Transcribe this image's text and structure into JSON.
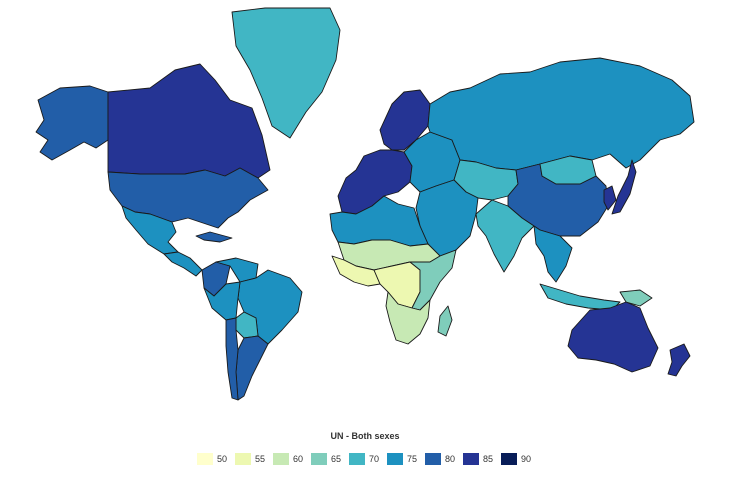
{
  "legend": {
    "title": "UN - Both sexes",
    "items": [
      {
        "label": "50",
        "color": "#ffffcc"
      },
      {
        "label": "55",
        "color": "#edf8b1"
      },
      {
        "label": "60",
        "color": "#c7e9b4"
      },
      {
        "label": "65",
        "color": "#7fcdbb"
      },
      {
        "label": "70",
        "color": "#41b6c4"
      },
      {
        "label": "75",
        "color": "#1d91c0"
      },
      {
        "label": "80",
        "color": "#225ea8"
      },
      {
        "label": "85",
        "color": "#253494"
      },
      {
        "label": "90",
        "color": "#081d58"
      }
    ]
  },
  "map": {
    "colors": {
      "ocean": "#ffffff",
      "border": "#1a1a1a"
    },
    "regions": [
      {
        "name": "Alaska",
        "value_band": "80"
      },
      {
        "name": "Canada",
        "value_band": "85"
      },
      {
        "name": "Greenland",
        "value_band": "70"
      },
      {
        "name": "United States",
        "value_band": "80"
      },
      {
        "name": "Mexico",
        "value_band": "75"
      },
      {
        "name": "Central America",
        "value_band": "75"
      },
      {
        "name": "Cuba",
        "value_band": "80"
      },
      {
        "name": "Colombia",
        "value_band": "80"
      },
      {
        "name": "Venezuela",
        "value_band": "75"
      },
      {
        "name": "Brazil",
        "value_band": "75"
      },
      {
        "name": "Peru",
        "value_band": "75"
      },
      {
        "name": "Bolivia",
        "value_band": "70"
      },
      {
        "name": "Argentina",
        "value_band": "80"
      },
      {
        "name": "Chile",
        "value_band": "80"
      },
      {
        "name": "Scandinavia",
        "value_band": "85"
      },
      {
        "name": "Western Europe",
        "value_band": "85"
      },
      {
        "name": "Eastern Europe",
        "value_band": "75"
      },
      {
        "name": "Russia",
        "value_band": "75"
      },
      {
        "name": "Central Asia",
        "value_band": "70"
      },
      {
        "name": "China",
        "value_band": "80"
      },
      {
        "name": "Mongolia",
        "value_band": "70"
      },
      {
        "name": "Japan",
        "value_band": "85"
      },
      {
        "name": "Korea",
        "value_band": "85"
      },
      {
        "name": "Middle East",
        "value_band": "75"
      },
      {
        "name": "India",
        "value_band": "70"
      },
      {
        "name": "Southeast Asia",
        "value_band": "75"
      },
      {
        "name": "Indonesia",
        "value_band": "70"
      },
      {
        "name": "Papua New Guinea",
        "value_band": "65"
      },
      {
        "name": "Australia",
        "value_band": "85"
      },
      {
        "name": "New Zealand",
        "value_band": "85"
      },
      {
        "name": "North Africa",
        "value_band": "75"
      },
      {
        "name": "Sahel",
        "value_band": "60"
      },
      {
        "name": "West Africa",
        "value_band": "55"
      },
      {
        "name": "Central Africa",
        "value_band": "55"
      },
      {
        "name": "East Africa",
        "value_band": "65"
      },
      {
        "name": "Southern Africa",
        "value_band": "60"
      },
      {
        "name": "Madagascar",
        "value_band": "65"
      }
    ]
  }
}
